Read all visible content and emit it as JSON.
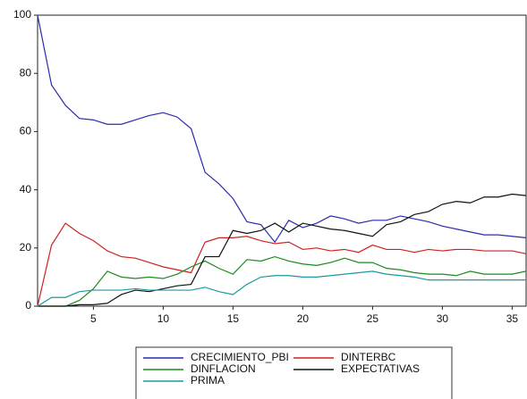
{
  "chart_data": {
    "type": "line",
    "x": [
      1,
      2,
      3,
      4,
      5,
      6,
      7,
      8,
      9,
      10,
      11,
      12,
      13,
      14,
      15,
      16,
      17,
      18,
      19,
      20,
      21,
      22,
      23,
      24,
      25,
      26,
      27,
      28,
      29,
      30,
      31,
      32,
      33,
      34,
      35,
      36
    ],
    "series": [
      {
        "name": "CRECIMIENTO_PBI",
        "color": "#2b2bb0",
        "values": [
          100,
          76,
          69,
          64.5,
          64,
          62.5,
          62.5,
          64,
          65.5,
          66.5,
          65,
          61,
          46,
          42,
          37,
          29,
          28,
          22,
          29.5,
          27,
          28.5,
          31,
          30,
          28.5,
          29.5,
          29.5,
          31,
          30,
          29,
          27.5,
          26.5,
          25.5,
          24.5,
          24.5,
          24,
          23.5
        ]
      },
      {
        "name": "DINTERBC",
        "color": "#d02020",
        "values": [
          0,
          21,
          28.5,
          25,
          22.5,
          19,
          17,
          16.5,
          15,
          13.5,
          12.5,
          11.5,
          22,
          23.5,
          23.5,
          24,
          22.5,
          21.5,
          22,
          19.5,
          20,
          19,
          19.5,
          18.5,
          21,
          19.5,
          19.5,
          18.5,
          19.5,
          19,
          19.5,
          19.5,
          19,
          19,
          19,
          18
        ]
      },
      {
        "name": "DINFLACION",
        "color": "#1c8a1c",
        "values": [
          0,
          0,
          0,
          2,
          6,
          12,
          10,
          9.5,
          10,
          9.5,
          11,
          13.5,
          15.5,
          13,
          11,
          16,
          15.5,
          17,
          15.5,
          14.5,
          14,
          15,
          16.5,
          15,
          15,
          13,
          12.5,
          11.5,
          11,
          11,
          10.5,
          12,
          11,
          11,
          11,
          12
        ]
      },
      {
        "name": "EXPECTATIVAS",
        "color": "#111111",
        "values": [
          0,
          0,
          0,
          0.5,
          0.5,
          1,
          4,
          5.5,
          5,
          6,
          7,
          7.5,
          17,
          17,
          26,
          25,
          26,
          28.5,
          25.5,
          28.5,
          27.5,
          26.5,
          26,
          25,
          24,
          28,
          29,
          31.5,
          32.5,
          35,
          36,
          35.5,
          37.5,
          37.5,
          38.5,
          38
        ]
      },
      {
        "name": "PRIMA",
        "color": "#1a9aa0",
        "values": [
          0,
          3,
          3,
          5,
          5.5,
          5.5,
          5.5,
          6,
          5.5,
          5.5,
          5.5,
          5.5,
          6.5,
          5,
          4,
          7.5,
          10,
          10.5,
          10.5,
          10,
          10,
          10.5,
          11,
          11.5,
          12,
          11,
          10.5,
          10,
          9,
          9,
          9,
          9,
          9,
          9,
          9,
          9
        ]
      }
    ],
    "xlim": [
      1,
      36
    ],
    "xticks": [
      5,
      10,
      15,
      20,
      25,
      30,
      35
    ],
    "ylim": [
      0,
      100
    ],
    "yticks": [
      0,
      20,
      40,
      60,
      80,
      100
    ]
  }
}
